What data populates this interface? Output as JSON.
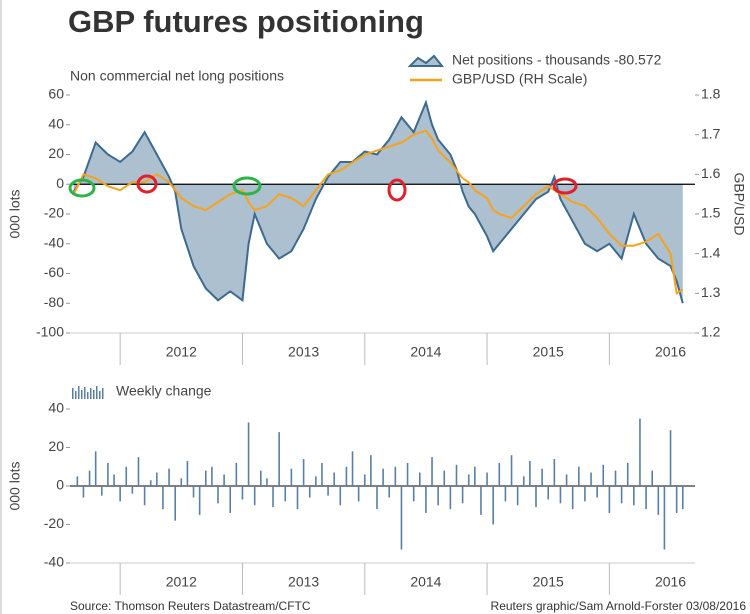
{
  "title": "GBP futures positioning",
  "footer_left": "Source: Thomson Reuters Datastream/CFTC",
  "footer_right": "Reuters graphic/Sam Arnold-Forster 03/08/2016",
  "chart_data": [
    {
      "type": "line",
      "subtitle": "Non commercial net long positions",
      "ylabel": "000 lots",
      "y2label": "GBP/USD",
      "categories": [
        "2012",
        "2013",
        "2014",
        "2015",
        "2016"
      ],
      "xlim": [
        2011.59,
        2016.7
      ],
      "ylim": [
        -100,
        60
      ],
      "yticks": [
        -100,
        -80,
        -60,
        -40,
        -20,
        0,
        20,
        40,
        60
      ],
      "y2lim": [
        1.2,
        1.8
      ],
      "y2ticks": [
        1.2,
        1.3,
        1.4,
        1.5,
        1.6,
        1.7,
        1.8
      ],
      "x": [
        2011.62,
        2011.7,
        2011.8,
        2011.9,
        2012.0,
        2012.1,
        2012.2,
        2012.3,
        2012.4,
        2012.45,
        2012.5,
        2012.6,
        2012.7,
        2012.8,
        2012.9,
        2013.0,
        2013.05,
        2013.1,
        2013.2,
        2013.3,
        2013.4,
        2013.5,
        2013.6,
        2013.7,
        2013.8,
        2013.9,
        2014.0,
        2014.1,
        2014.2,
        2014.3,
        2014.4,
        2014.5,
        2014.55,
        2014.6,
        2014.7,
        2014.75,
        2014.8,
        2014.85,
        2014.9,
        2015.0,
        2015.05,
        2015.1,
        2015.2,
        2015.3,
        2015.4,
        2015.5,
        2015.55,
        2015.6,
        2015.7,
        2015.8,
        2015.9,
        2016.0,
        2016.1,
        2016.2,
        2016.3,
        2016.4,
        2016.5,
        2016.55,
        2016.6
      ],
      "series": [
        {
          "name": "Net positions - thousands -80.572",
          "color": "#3d6a8e",
          "fill": "#adc0d0",
          "values": [
            -5,
            5,
            28,
            20,
            15,
            22,
            35,
            20,
            5,
            -5,
            -30,
            -55,
            -70,
            -78,
            -72,
            -78,
            -40,
            -20,
            -40,
            -50,
            -45,
            -30,
            -10,
            5,
            15,
            15,
            22,
            20,
            30,
            45,
            35,
            55,
            40,
            30,
            20,
            10,
            -5,
            -15,
            -20,
            -35,
            -45,
            -40,
            -30,
            -20,
            -10,
            -5,
            5,
            -10,
            -25,
            -40,
            -45,
            -40,
            -50,
            -20,
            -40,
            -50,
            -55,
            -65,
            -80
          ]
        },
        {
          "name": "GBP/USD (RH Scale)",
          "color": "#f7a21b",
          "axis": "y2",
          "values": [
            1.55,
            1.6,
            1.59,
            1.57,
            1.56,
            1.58,
            1.58,
            1.6,
            1.58,
            1.56,
            1.54,
            1.52,
            1.51,
            1.53,
            1.55,
            1.56,
            1.53,
            1.51,
            1.52,
            1.55,
            1.54,
            1.52,
            1.56,
            1.6,
            1.61,
            1.63,
            1.65,
            1.66,
            1.67,
            1.68,
            1.7,
            1.71,
            1.69,
            1.66,
            1.63,
            1.61,
            1.59,
            1.58,
            1.56,
            1.54,
            1.51,
            1.5,
            1.49,
            1.52,
            1.55,
            1.57,
            1.56,
            1.55,
            1.53,
            1.52,
            1.49,
            1.45,
            1.42,
            1.42,
            1.43,
            1.45,
            1.4,
            1.3,
            1.31
          ]
        }
      ]
    },
    {
      "type": "bar",
      "ylabel": "000 lots",
      "categories": [
        "2012",
        "2013",
        "2014",
        "2015",
        "2016"
      ],
      "xlim": [
        2011.59,
        2016.7
      ],
      "ylim": [
        -40,
        40
      ],
      "yticks": [
        -40,
        -20,
        0,
        20,
        40
      ],
      "series": [
        {
          "name": "Weekly change",
          "color": "#5a7fa2",
          "values": [
            5,
            -6,
            8,
            18,
            -5,
            12,
            6,
            -8,
            10,
            -4,
            15,
            -10,
            3,
            7,
            -12,
            9,
            -18,
            4,
            13,
            -6,
            -15,
            8,
            10,
            -9,
            6,
            -14,
            12,
            -7,
            33,
            -10,
            8,
            4,
            -11,
            28,
            -8,
            9,
            -12,
            14,
            -6,
            5,
            12,
            -5,
            7,
            -10,
            10,
            18,
            -8,
            6,
            16,
            -12,
            9,
            -6,
            10,
            -33,
            12,
            -8,
            7,
            -14,
            15,
            -10,
            8,
            -12,
            11,
            -9,
            6,
            10,
            -15,
            7,
            -20,
            12,
            -8,
            16,
            -10,
            5,
            13,
            -11,
            9,
            -7,
            14,
            -9,
            6,
            -12,
            10,
            -8,
            7,
            -6,
            11,
            -14,
            8,
            -9,
            12,
            -10,
            35,
            -12,
            8,
            -15,
            -33,
            29,
            -14,
            -12
          ]
        }
      ],
      "x": [
        2011.65,
        2011.7,
        2011.75,
        2011.8,
        2011.85,
        2011.9,
        2011.95,
        2012.0,
        2012.05,
        2012.1,
        2012.15,
        2012.2,
        2012.25,
        2012.3,
        2012.35,
        2012.4,
        2012.45,
        2012.5,
        2012.55,
        2012.6,
        2012.65,
        2012.7,
        2012.75,
        2012.8,
        2012.85,
        2012.9,
        2012.95,
        2013.0,
        2013.05,
        2013.1,
        2013.15,
        2013.2,
        2013.25,
        2013.3,
        2013.35,
        2013.4,
        2013.45,
        2013.5,
        2013.55,
        2013.6,
        2013.65,
        2013.7,
        2013.75,
        2013.8,
        2013.85,
        2013.9,
        2013.95,
        2014.0,
        2014.05,
        2014.1,
        2014.15,
        2014.2,
        2014.25,
        2014.3,
        2014.35,
        2014.4,
        2014.45,
        2014.5,
        2014.55,
        2014.6,
        2014.65,
        2014.7,
        2014.75,
        2014.8,
        2014.85,
        2014.9,
        2014.95,
        2015.0,
        2015.05,
        2015.1,
        2015.15,
        2015.2,
        2015.25,
        2015.3,
        2015.35,
        2015.4,
        2015.45,
        2015.5,
        2015.55,
        2015.6,
        2015.65,
        2015.7,
        2015.75,
        2015.8,
        2015.85,
        2015.9,
        2015.95,
        2016.0,
        2016.05,
        2016.1,
        2016.15,
        2016.2,
        2016.25,
        2016.3,
        2016.35,
        2016.4,
        2016.45,
        2016.5,
        2016.55,
        2016.6
      ]
    }
  ]
}
